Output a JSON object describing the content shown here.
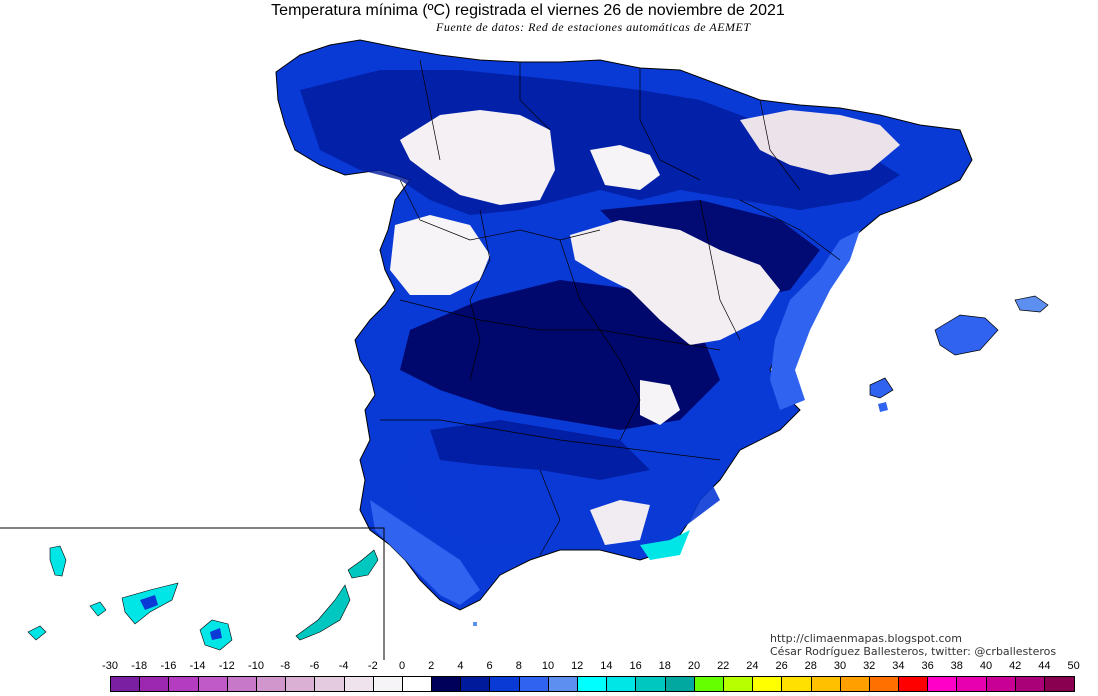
{
  "title": "Temperatura mínima (ºC) registrada el viernes 26 de noviembre de 2021",
  "source": "Fuente de datos: Red de estaciones automáticas de AEMET",
  "credit_url": "http://climaenmapas.blogspot.com",
  "credit_author": "César Rodríguez Ballesteros, twitter: @crballesteros",
  "legend": {
    "ticks": [
      "-30",
      "-18",
      "-16",
      "-14",
      "-12",
      "-10",
      "-8",
      "-6",
      "-4",
      "-2",
      "0",
      "2",
      "4",
      "6",
      "8",
      "10",
      "12",
      "14",
      "16",
      "18",
      "20",
      "22",
      "24",
      "26",
      "28",
      "30",
      "32",
      "34",
      "36",
      "38",
      "40",
      "42",
      "44",
      "50"
    ],
    "colors": [
      "#7b1fa2",
      "#9c27b0",
      "#b33cc0",
      "#c05ac8",
      "#c878c8",
      "#d196cc",
      "#dab0d4",
      "#e4cbe0",
      "#efe4ee",
      "#f7f4f7",
      "#ffffff",
      "#00005a",
      "#001a9c",
      "#0a3ad6",
      "#2f63f0",
      "#5c8ff0",
      "#00ffff",
      "#00e6e6",
      "#00c8c0",
      "#00a8a0",
      "#66ff00",
      "#b8ff00",
      "#ffff00",
      "#ffe000",
      "#ffc000",
      "#ffa000",
      "#ff7000",
      "#ff0000",
      "#ff00c8",
      "#e600b0",
      "#c80096",
      "#aa0078",
      "#8a0050"
    ]
  },
  "inset": "Islas Canarias"
}
